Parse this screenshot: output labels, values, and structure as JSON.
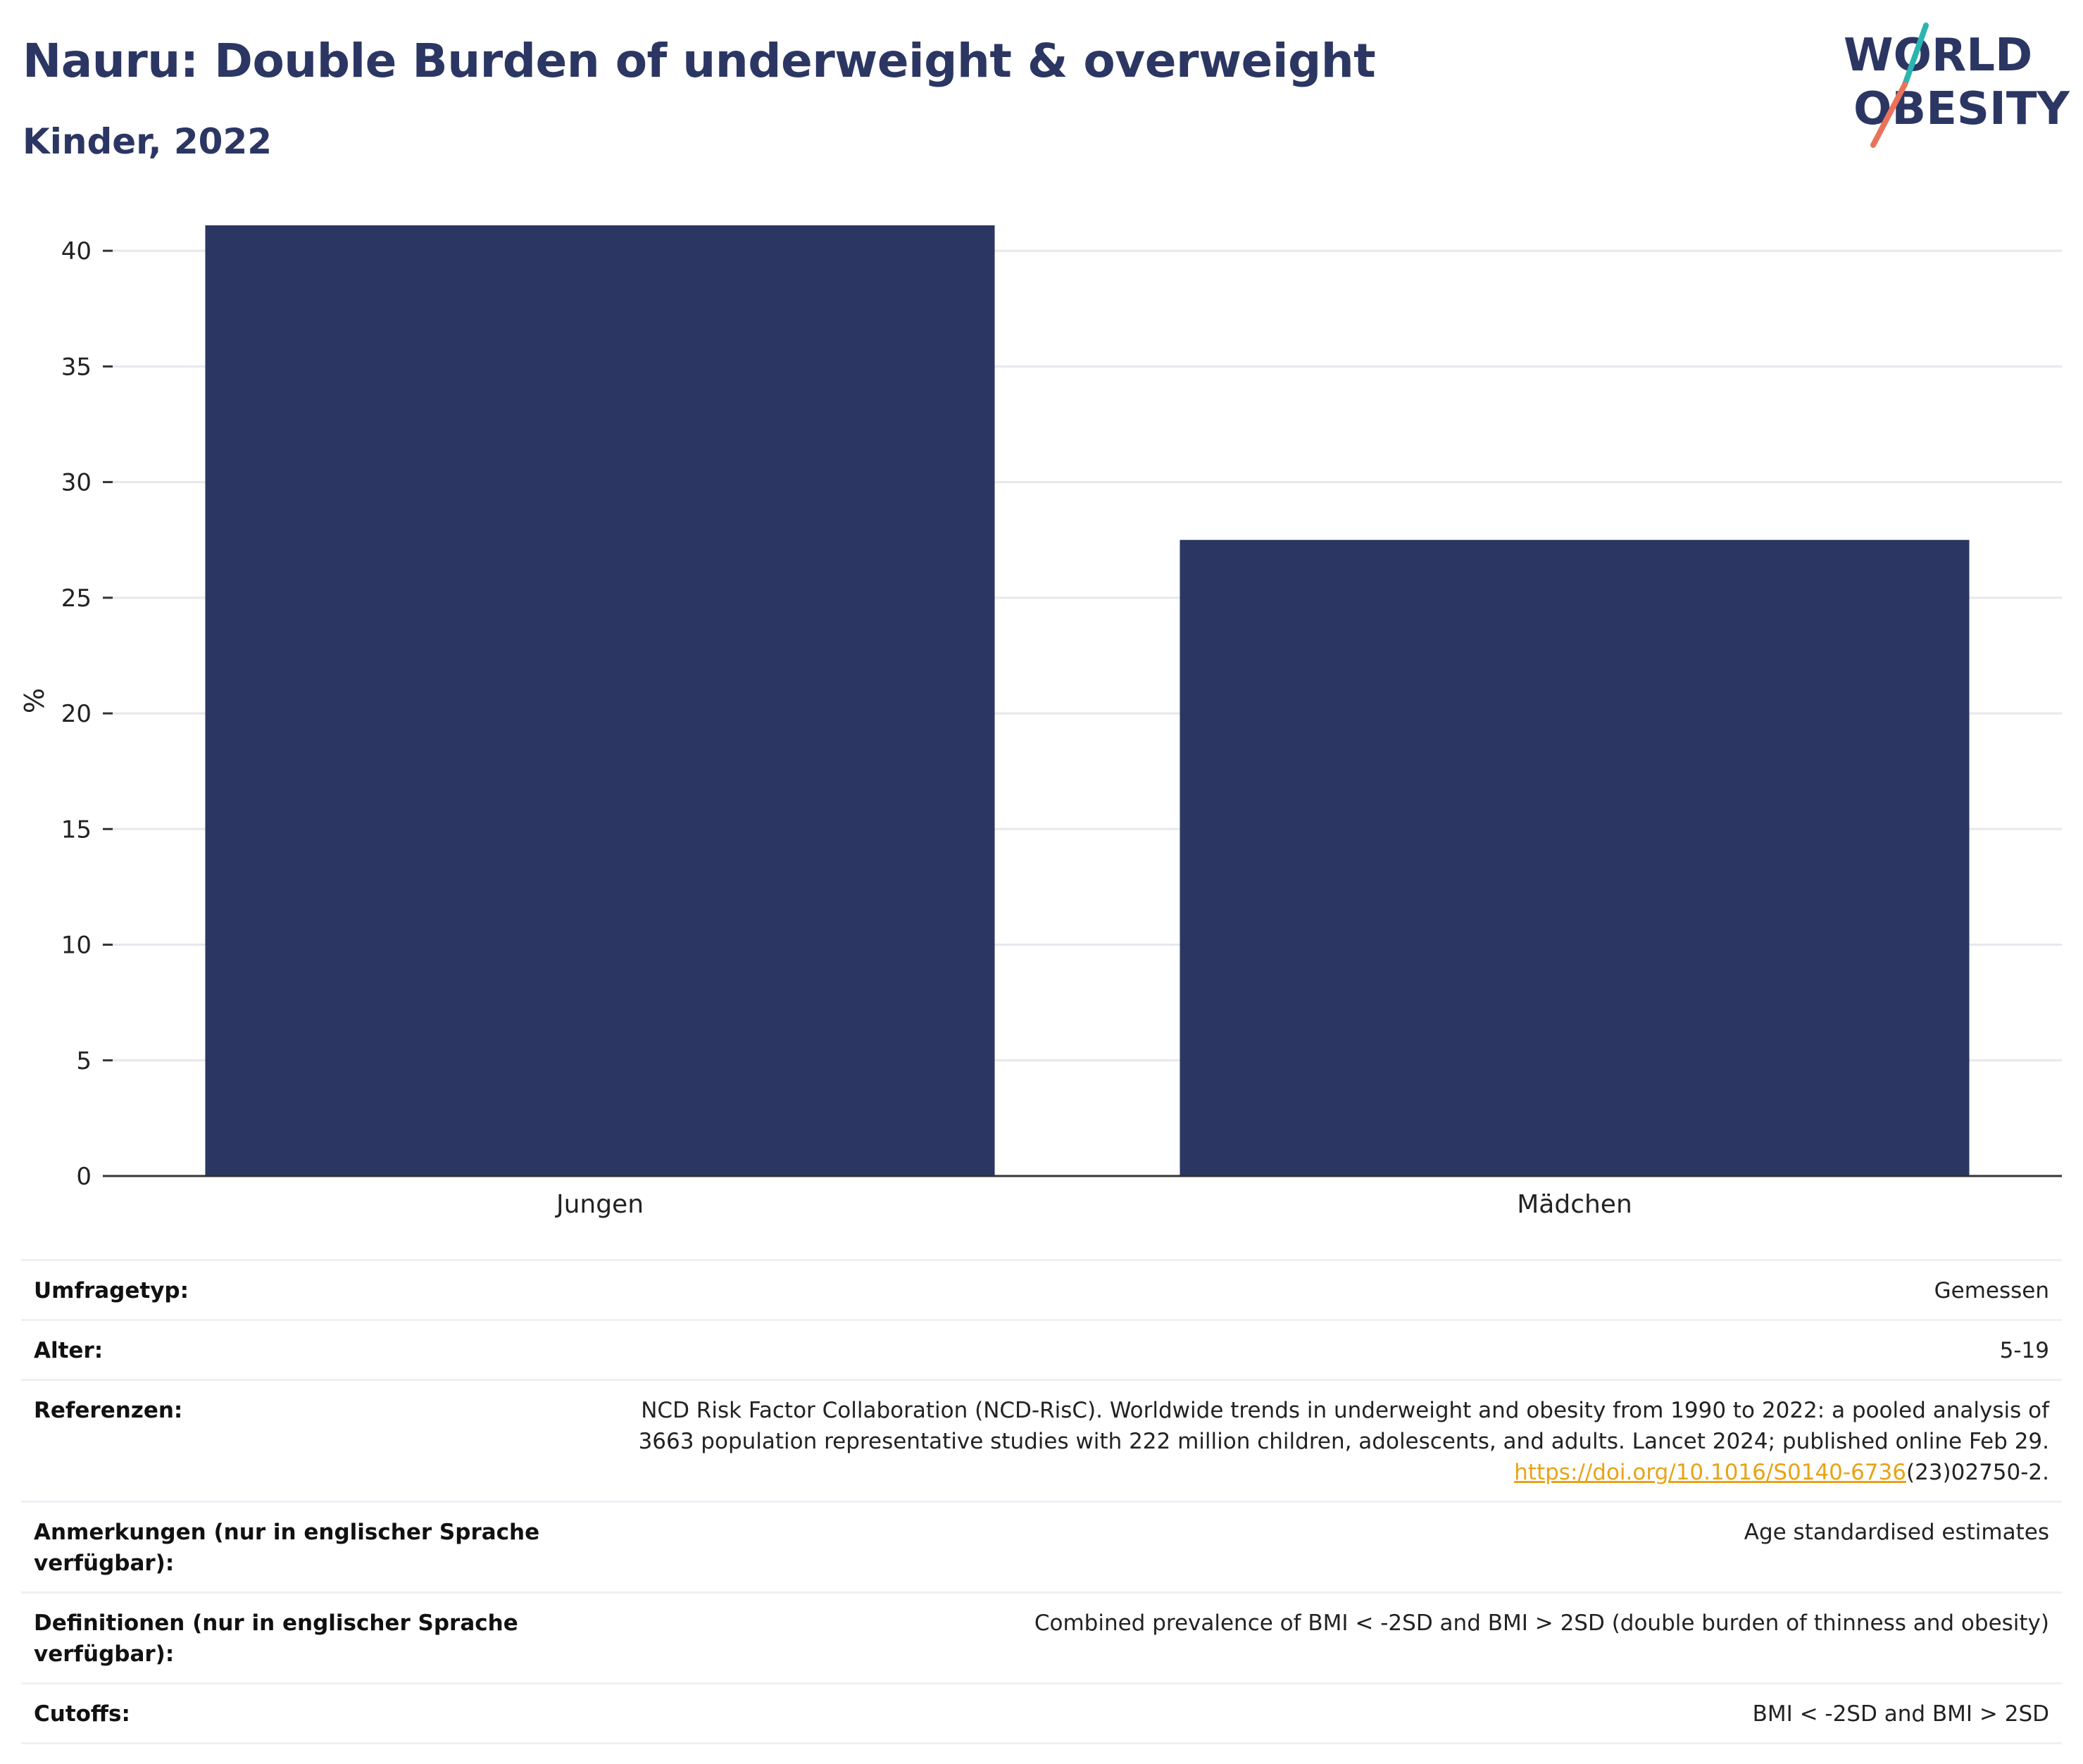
{
  "header": {
    "title": "Nauru: Double Burden of underweight & overweight",
    "subtitle": "Kinder, 2022"
  },
  "logo": {
    "line1": "WORLD",
    "line2": "OBESITY",
    "colors": {
      "text": "#2b3663",
      "slash_top": "#2bb5b0",
      "slash_bottom": "#e8735a"
    }
  },
  "chart_data": {
    "type": "bar",
    "categories": [
      "Jungen",
      "Mädchen"
    ],
    "values": [
      41.1,
      27.5
    ],
    "ylabel": "%",
    "xlabel": "",
    "ylim": [
      0,
      41.1
    ],
    "yticks": [
      0,
      5,
      10,
      15,
      20,
      25,
      30,
      35,
      40
    ],
    "grid": true,
    "legend": "none",
    "bar_color": "#2b3663"
  },
  "info": {
    "rows": [
      {
        "label": "Umfragetyp:",
        "value": "Gemessen"
      },
      {
        "label": "Alter:",
        "value": "5-19"
      },
      {
        "label": "Referenzen:",
        "value_line1": "NCD Risk Factor Collaboration (NCD-RisC). Worldwide trends in underweight and obesity from 1990 to 2022: a pooled analysis of",
        "value_line2": "3663 population representative studies with 222 million children, adolescents, and adults. Lancet 2024; published online Feb 29.",
        "link": "https://doi.org/10.1016/S0140-6736",
        "link_suffix": "(23)02750-2."
      },
      {
        "label": "Anmerkungen (nur in englischer Sprache verfügbar):",
        "value": "Age standardised estimates"
      },
      {
        "label": "Definitionen (nur in englischer Sprache verfügbar):",
        "value": "Combined prevalence of BMI < -2SD and BMI > 2SD (double burden of thinness and obesity)"
      },
      {
        "label": "Cutoffs:",
        "value": "BMI < -2SD and BMI > 2SD"
      }
    ],
    "link_color": "#e8a317"
  }
}
